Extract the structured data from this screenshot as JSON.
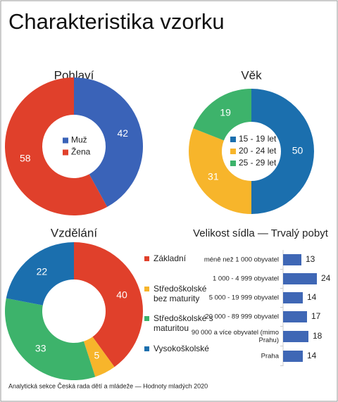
{
  "title": "Charakteristika vzorku",
  "footer": "Analytická sekce Česká rada dětí a mládeže — Hodnoty mladých 2020",
  "chart_data": [
    {
      "type": "donut",
      "title": "Pohlaví",
      "legend": "center",
      "categories": [
        "Muž",
        "Žena"
      ],
      "values": [
        42,
        58
      ],
      "colors": [
        "#3a63b8",
        "#e0402b"
      ]
    },
    {
      "type": "donut",
      "title": "Věk",
      "legend": "center",
      "categories": [
        "15 - 19 let",
        "20 - 24 let",
        "25 - 29 let"
      ],
      "values": [
        50,
        31,
        19
      ],
      "colors": [
        "#1b6fae",
        "#f7b52b",
        "#3db36b"
      ]
    },
    {
      "type": "donut",
      "title": "Vzdělání",
      "legend": "right",
      "categories": [
        "Základní",
        "Středoškolské bez maturity",
        "Středoškolské s maturitou",
        "Vysokoškolské"
      ],
      "values": [
        40,
        5,
        33,
        22
      ],
      "colors": [
        "#e0402b",
        "#f7b52b",
        "#3db36b",
        "#1b6fae"
      ]
    },
    {
      "type": "bar",
      "orientation": "horizontal",
      "title": "Velikost sídla — Trvalý pobyt",
      "categories": [
        "méně než 1 000 obyvatel",
        "1 000 - 4 999 obyvatel",
        "5 000 - 19 999 obyvatel",
        "20 000 - 89 999 obyvatel",
        "90 000 a více obyvatel (mimo Prahu)",
        "Praha"
      ],
      "values": [
        13,
        24,
        14,
        17,
        18,
        14
      ],
      "color": "#3f67b5"
    }
  ]
}
